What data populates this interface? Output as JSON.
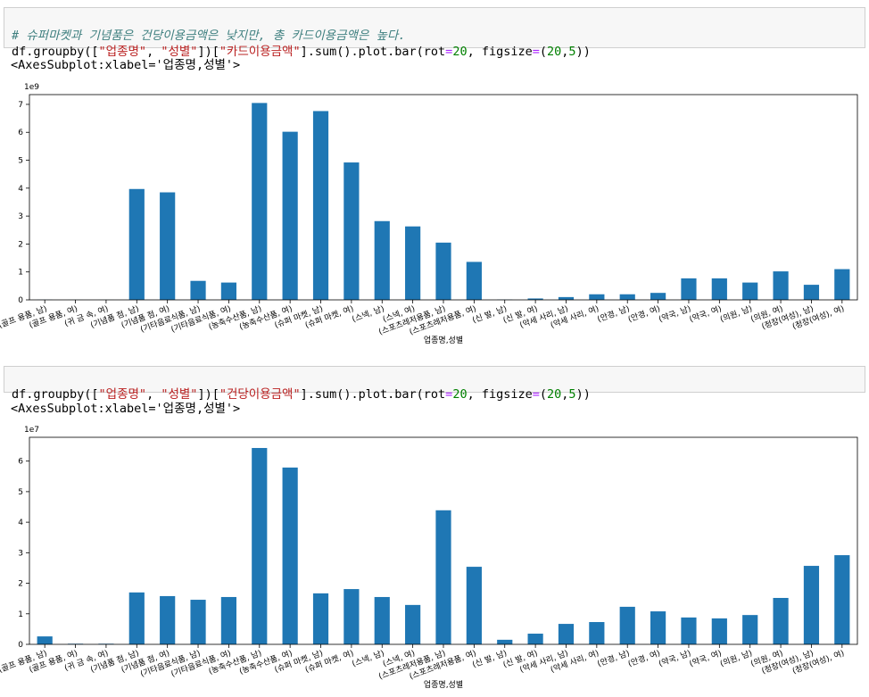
{
  "cells": [
    {
      "comment": "# 슈퍼마켓과 기념품은 건당이용금액은 낮지만, 총 카드이용금액은 높다.",
      "code": [
        "df.groupby([",
        "\"업종명\"",
        ", ",
        "\"성별\"",
        "])[",
        "\"카드이용금액\"",
        "].sum().plot.bar(rot",
        "=",
        "20",
        ", figsize",
        "=",
        "(",
        "20",
        ",",
        "5",
        "))"
      ],
      "output": "<AxesSubplot:xlabel='업종명,성별'>"
    },
    {
      "code": [
        "df.groupby([",
        "\"업종명\"",
        ", ",
        "\"성별\"",
        "])[",
        "\"건당이용금액\"",
        "].sum().plot.bar(rot",
        "=",
        "20",
        ", figsize",
        "=",
        "(",
        "20",
        ",",
        "5",
        "))"
      ],
      "output": "<AxesSubplot:xlabel='업종명,성별'>"
    }
  ],
  "chart_data": [
    {
      "type": "bar",
      "offset_label": "1e9",
      "xlabel": "업종명,성별",
      "color": "#1f77b4",
      "categories": [
        "(골프 용품, 남)",
        "(골프 용품, 여)",
        "(귀 금 속, 여)",
        "(기념품 점, 남)",
        "(기념품 점, 여)",
        "(기타음료식품, 남)",
        "(기타음료식품, 여)",
        "(농축수산품, 남)",
        "(농축수산품, 여)",
        "(슈퍼 마켓, 남)",
        "(슈퍼 마켓, 여)",
        "(스넥, 남)",
        "(스넥, 여)",
        "(스포츠레저용품, 남)",
        "(스포츠레저용품, 여)",
        "(신 발, 남)",
        "(신 발, 여)",
        "(악세 사리, 남)",
        "(악세 사리, 여)",
        "(안경, 남)",
        "(안경, 여)",
        "(약국, 남)",
        "(약국, 여)",
        "(의원, 남)",
        "(의원, 여)",
        "(정장(여성), 남)",
        "(정장(여성), 여)"
      ],
      "values": [
        0.005,
        0.002,
        0.002,
        3.97,
        3.85,
        0.68,
        0.62,
        7.05,
        6.02,
        6.76,
        4.92,
        2.82,
        2.63,
        2.05,
        1.36,
        0.01,
        0.05,
        0.1,
        0.2,
        0.2,
        0.25,
        0.77,
        0.77,
        0.62,
        1.02,
        0.54,
        1.1
      ],
      "ylim": [
        0,
        7.35
      ],
      "yticks": [
        0,
        1,
        2,
        3,
        4,
        5,
        6,
        7
      ]
    },
    {
      "type": "bar",
      "offset_label": "1e7",
      "xlabel": "업종명,성별",
      "color": "#1f77b4",
      "categories": [
        "(골프 용품, 남)",
        "(골프 용품, 여)",
        "(귀 금 속, 여)",
        "(기념품 점, 남)",
        "(기념품 점, 여)",
        "(기타음료식품, 남)",
        "(기타음료식품, 여)",
        "(농축수산품, 남)",
        "(농축수산품, 여)",
        "(슈퍼 마켓, 남)",
        "(슈퍼 마켓, 여)",
        "(스넥, 남)",
        "(스넥, 여)",
        "(스포츠레저용품, 남)",
        "(스포츠레저용품, 여)",
        "(신 발, 남)",
        "(신 발, 여)",
        "(악세 사리, 남)",
        "(악세 사리, 여)",
        "(안경, 남)",
        "(안경, 여)",
        "(약국, 남)",
        "(약국, 여)",
        "(의원, 남)",
        "(의원, 여)",
        "(정장(여성), 남)",
        "(정장(여성), 여)"
      ],
      "values": [
        0.26,
        0.02,
        0.02,
        1.7,
        1.58,
        1.46,
        1.55,
        6.43,
        5.79,
        1.67,
        1.81,
        1.55,
        1.29,
        4.39,
        2.54,
        0.15,
        0.35,
        0.67,
        0.73,
        1.23,
        1.08,
        0.88,
        0.85,
        0.96,
        1.52,
        2.57,
        2.92
      ],
      "ylim": [
        0,
        6.78
      ],
      "yticks": [
        0,
        1,
        2,
        3,
        4,
        5,
        6
      ]
    }
  ]
}
